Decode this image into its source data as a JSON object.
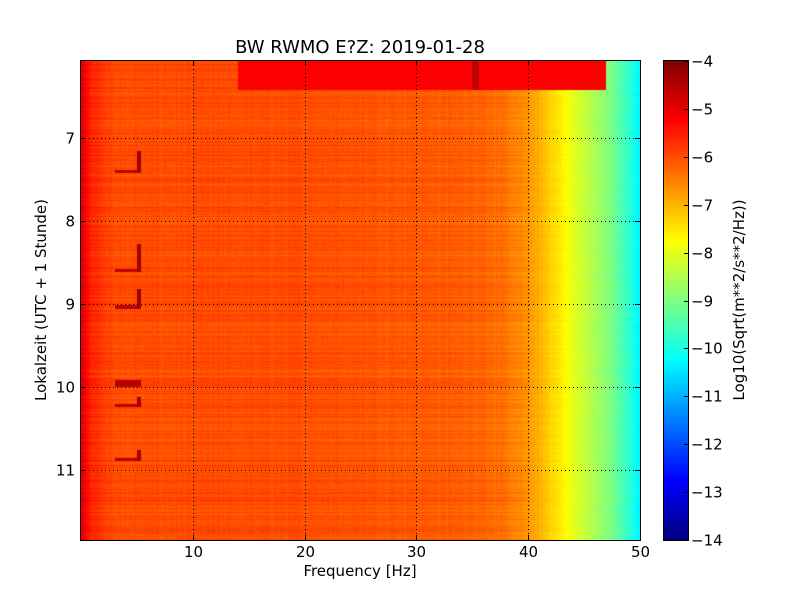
{
  "chart_data": {
    "type": "heatmap",
    "title": "BW RWMO E?Z: 2019-01-28",
    "xlabel": "Frequency [Hz]",
    "ylabel": "Lokalzeit (UTC + 1 Stunde)",
    "xlim": [
      0,
      50
    ],
    "ylim": [
      6.07,
      11.85
    ],
    "y_inverted": true,
    "x_ticks": [
      10,
      20,
      30,
      40,
      50
    ],
    "x_tick_labels": [
      "10",
      "20",
      "30",
      "40",
      "50"
    ],
    "y_ticks": [
      7,
      8,
      9,
      10,
      11
    ],
    "y_tick_labels": [
      "7",
      "8",
      "9",
      "10",
      "11"
    ],
    "grid": true,
    "colormap": "jet",
    "colorbar": {
      "label": "Log10(Sqrt(m**2/s**2/Hz))",
      "min": -14,
      "max": -4,
      "ticks": [
        -4,
        -5,
        -6,
        -7,
        -8,
        -9,
        -10,
        -11,
        -12,
        -13,
        -14
      ],
      "tick_labels": [
        "−4",
        "−5",
        "−6",
        "−7",
        "−8",
        "−9",
        "−10",
        "−11",
        "−12",
        "−13",
        "−14"
      ]
    },
    "spectrum_profile": {
      "frequency": [
        0,
        1,
        3,
        10,
        20,
        30,
        36,
        38,
        40,
        41,
        42,
        43,
        44,
        45,
        46,
        47,
        48,
        49,
        50
      ],
      "level": [
        -5.0,
        -5.6,
        -6.0,
        -6.0,
        -6.0,
        -6.1,
        -6.2,
        -6.4,
        -6.7,
        -7.0,
        -7.3,
        -7.6,
        -8.0,
        -8.3,
        -8.6,
        -8.9,
        -9.3,
        -9.8,
        -10.4
      ]
    },
    "events": [
      {
        "time_start": 6.07,
        "time_end": 6.42,
        "freq_start": 14,
        "freq_end": 47,
        "level": -5.2
      },
      {
        "time_start": 6.07,
        "time_end": 6.42,
        "freq_start": 35,
        "freq_end": 35.6,
        "level": -4.6
      },
      {
        "time_start": 7.15,
        "time_end": 7.42,
        "freq_start": 5,
        "freq_end": 5.4,
        "level": -4.3
      },
      {
        "time_start": 7.38,
        "time_end": 7.42,
        "freq_start": 3,
        "freq_end": 5.4,
        "level": -4.6
      },
      {
        "time_start": 8.28,
        "time_end": 8.62,
        "freq_start": 5,
        "freq_end": 5.4,
        "level": -4.3
      },
      {
        "time_start": 8.58,
        "time_end": 8.62,
        "freq_start": 3,
        "freq_end": 5.4,
        "level": -4.6
      },
      {
        "time_start": 8.82,
        "time_end": 9.06,
        "freq_start": 5,
        "freq_end": 5.4,
        "level": -4.3
      },
      {
        "time_start": 9.02,
        "time_end": 9.06,
        "freq_start": 3,
        "freq_end": 5.4,
        "level": -4.6
      },
      {
        "time_start": 9.92,
        "time_end": 10.0,
        "freq_start": 3,
        "freq_end": 5.4,
        "level": -4.5
      },
      {
        "time_start": 10.13,
        "time_end": 10.25,
        "freq_start": 5,
        "freq_end": 5.4,
        "level": -4.3
      },
      {
        "time_start": 10.21,
        "time_end": 10.25,
        "freq_start": 3,
        "freq_end": 5.4,
        "level": -4.6
      },
      {
        "time_start": 10.77,
        "time_end": 10.9,
        "freq_start": 5,
        "freq_end": 5.4,
        "level": -4.3
      },
      {
        "time_start": 10.86,
        "time_end": 10.9,
        "freq_start": 3,
        "freq_end": 5.4,
        "level": -4.6
      }
    ]
  }
}
